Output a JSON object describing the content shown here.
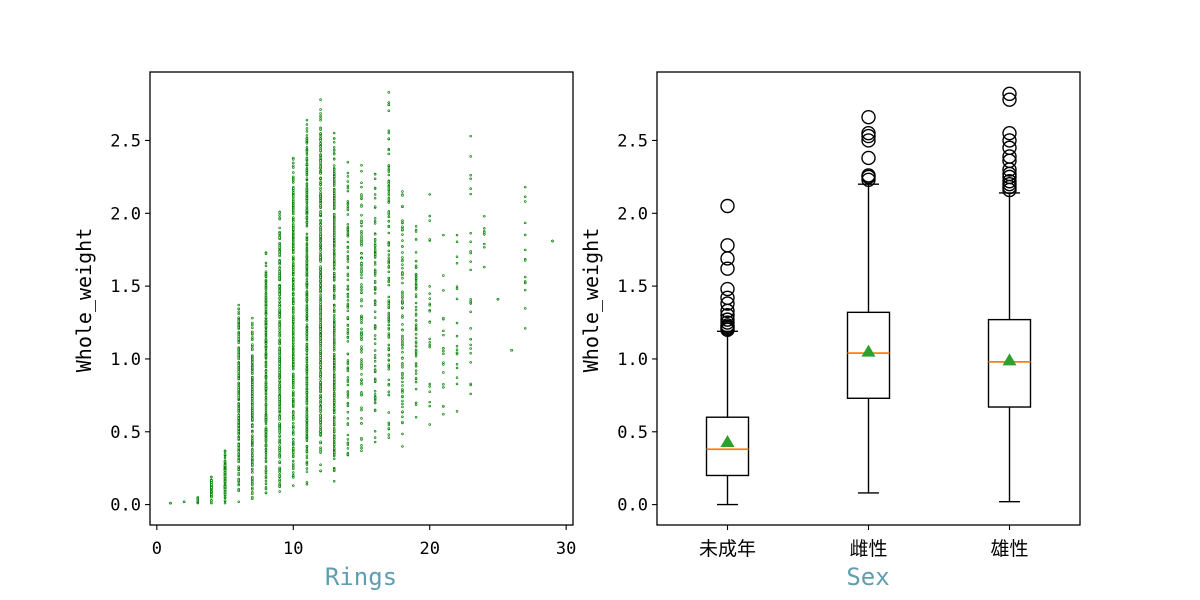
{
  "colors": {
    "scatter": "#008000",
    "median": "#ff7f0e",
    "mean_marker": "#2ca02c",
    "xlabel": "#5f9eb0"
  },
  "chart_data": [
    {
      "type": "scatter",
      "xlabel": "Rings",
      "ylabel": "Whole_weight",
      "xlim": [
        -0.5,
        30.5
      ],
      "ylim": [
        -0.14,
        2.97
      ],
      "xticks": [
        0,
        10,
        20,
        30
      ],
      "yticks": [
        "0.0",
        "0.5",
        "1.0",
        "1.5",
        "2.0",
        "2.5"
      ],
      "grid": false,
      "marker_color": "#008000",
      "column_ranges": [
        {
          "x": 1,
          "min": 0.01,
          "max": 0.01
        },
        {
          "x": 2,
          "min": 0.02,
          "max": 0.02
        },
        {
          "x": 3,
          "min": 0.01,
          "max": 0.05
        },
        {
          "x": 4,
          "min": 0.01,
          "max": 0.19
        },
        {
          "x": 5,
          "min": 0.01,
          "max": 0.37
        },
        {
          "x": 6,
          "min": 0.02,
          "max": 1.37
        },
        {
          "x": 7,
          "min": 0.04,
          "max": 1.28
        },
        {
          "x": 8,
          "min": 0.08,
          "max": 1.73
        },
        {
          "x": 9,
          "min": 0.09,
          "max": 2.01
        },
        {
          "x": 10,
          "min": 0.13,
          "max": 2.38
        },
        {
          "x": 11,
          "min": 0.14,
          "max": 2.64
        },
        {
          "x": 12,
          "min": 0.23,
          "max": 2.78
        },
        {
          "x": 13,
          "min": 0.16,
          "max": 2.55
        },
        {
          "x": 14,
          "min": 0.34,
          "max": 2.35
        },
        {
          "x": 15,
          "min": 0.37,
          "max": 2.33
        },
        {
          "x": 16,
          "min": 0.43,
          "max": 2.27
        },
        {
          "x": 17,
          "min": 0.46,
          "max": 2.83
        },
        {
          "x": 18,
          "min": 0.4,
          "max": 2.15
        },
        {
          "x": 19,
          "min": 0.6,
          "max": 1.91
        },
        {
          "x": 20,
          "min": 0.55,
          "max": 2.13
        },
        {
          "x": 21,
          "min": 0.62,
          "max": 1.85
        },
        {
          "x": 22,
          "min": 0.64,
          "max": 1.85
        },
        {
          "x": 23,
          "min": 0.76,
          "max": 2.53
        },
        {
          "x": 24,
          "min": 1.63,
          "max": 1.98
        },
        {
          "x": 25,
          "min": 1.41,
          "max": 1.41
        },
        {
          "x": 26,
          "min": 1.06,
          "max": 1.06
        },
        {
          "x": 27,
          "min": 1.21,
          "max": 2.18
        },
        {
          "x": 29,
          "min": 1.81,
          "max": 1.81
        }
      ]
    },
    {
      "type": "box",
      "xlabel": "Sex",
      "ylabel": "Whole_weight",
      "ylim": [
        -0.14,
        2.97
      ],
      "yticks": [
        "0.0",
        "0.5",
        "1.0",
        "1.5",
        "2.0",
        "2.5"
      ],
      "categories": [
        "未成年",
        "雌性",
        "雄性"
      ],
      "boxes": [
        {
          "whisker_low": 0.0,
          "q1": 0.2,
          "median": 0.38,
          "mean": 0.43,
          "q3": 0.6,
          "whisker_high": 1.19,
          "fliers": [
            1.2,
            1.21,
            1.22,
            1.23,
            1.25,
            1.27,
            1.3,
            1.33,
            1.38,
            1.42,
            1.48,
            1.62,
            1.69,
            1.78,
            2.05
          ]
        },
        {
          "whisker_low": 0.08,
          "q1": 0.73,
          "median": 1.04,
          "mean": 1.05,
          "q3": 1.32,
          "whisker_high": 2.2,
          "fliers": [
            2.23,
            2.25,
            2.26,
            2.38,
            2.5,
            2.53,
            2.55,
            2.66
          ]
        },
        {
          "whisker_low": 0.02,
          "q1": 0.67,
          "median": 0.98,
          "mean": 0.99,
          "q3": 1.27,
          "whisker_high": 2.14,
          "fliers": [
            2.16,
            2.18,
            2.2,
            2.22,
            2.25,
            2.27,
            2.3,
            2.36,
            2.39,
            2.45,
            2.5,
            2.55,
            2.78,
            2.82
          ]
        }
      ]
    }
  ]
}
